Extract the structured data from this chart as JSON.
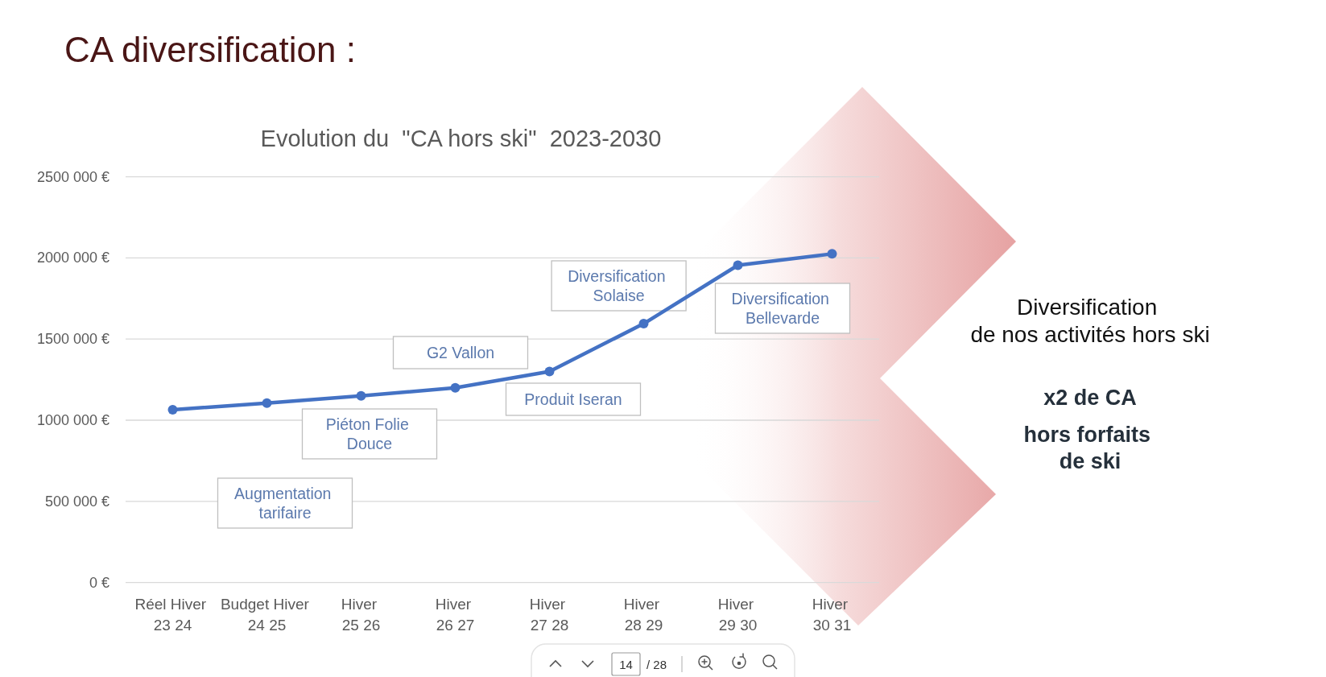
{
  "chart_data": {
    "type": "line",
    "title": "CA diversification :",
    "subtitle": "Evolution du  \"CA hors ski\"  2023-2030",
    "categories": [
      "Réel Hiver 23 24",
      "Budget Hiver 24 25",
      "Hiver 25 26",
      "Hiver 26 27",
      "Hiver 27 28",
      "Hiver 28 29",
      "Hiver 29 30",
      "Hiver 30 31"
    ],
    "series": [
      {
        "color": "#4472c4",
        "values": [
          1065000,
          1105000,
          1150000,
          1200000,
          1300000,
          1595000,
          1955000,
          2025000
        ]
      }
    ],
    "ylim": [
      0,
      2500000
    ],
    "yticks": [
      {
        "value": 0,
        "label": "0 €"
      },
      {
        "value": 500000,
        "label": "500 000 €"
      },
      {
        "value": 1000000,
        "label": "1000 000 €"
      },
      {
        "value": 1500000,
        "label": "1500 000 €"
      },
      {
        "value": 2000000,
        "label": "2000 000 €"
      },
      {
        "value": 2500000,
        "label": "2500 000 €"
      }
    ],
    "grid": "y",
    "marker": "circle",
    "annotations": [
      "Augmentation tarifaire",
      "Piéton Folie Douce",
      "G2 Vallon",
      "Produit Iseran",
      "Diversification Solaise",
      "Diversification Bellevarde",
      "Diversification\nde nos activités hors ski",
      "x2 de CA",
      "hors forfaits\nde ski",
      "14",
      "/ 28"
    ]
  }
}
